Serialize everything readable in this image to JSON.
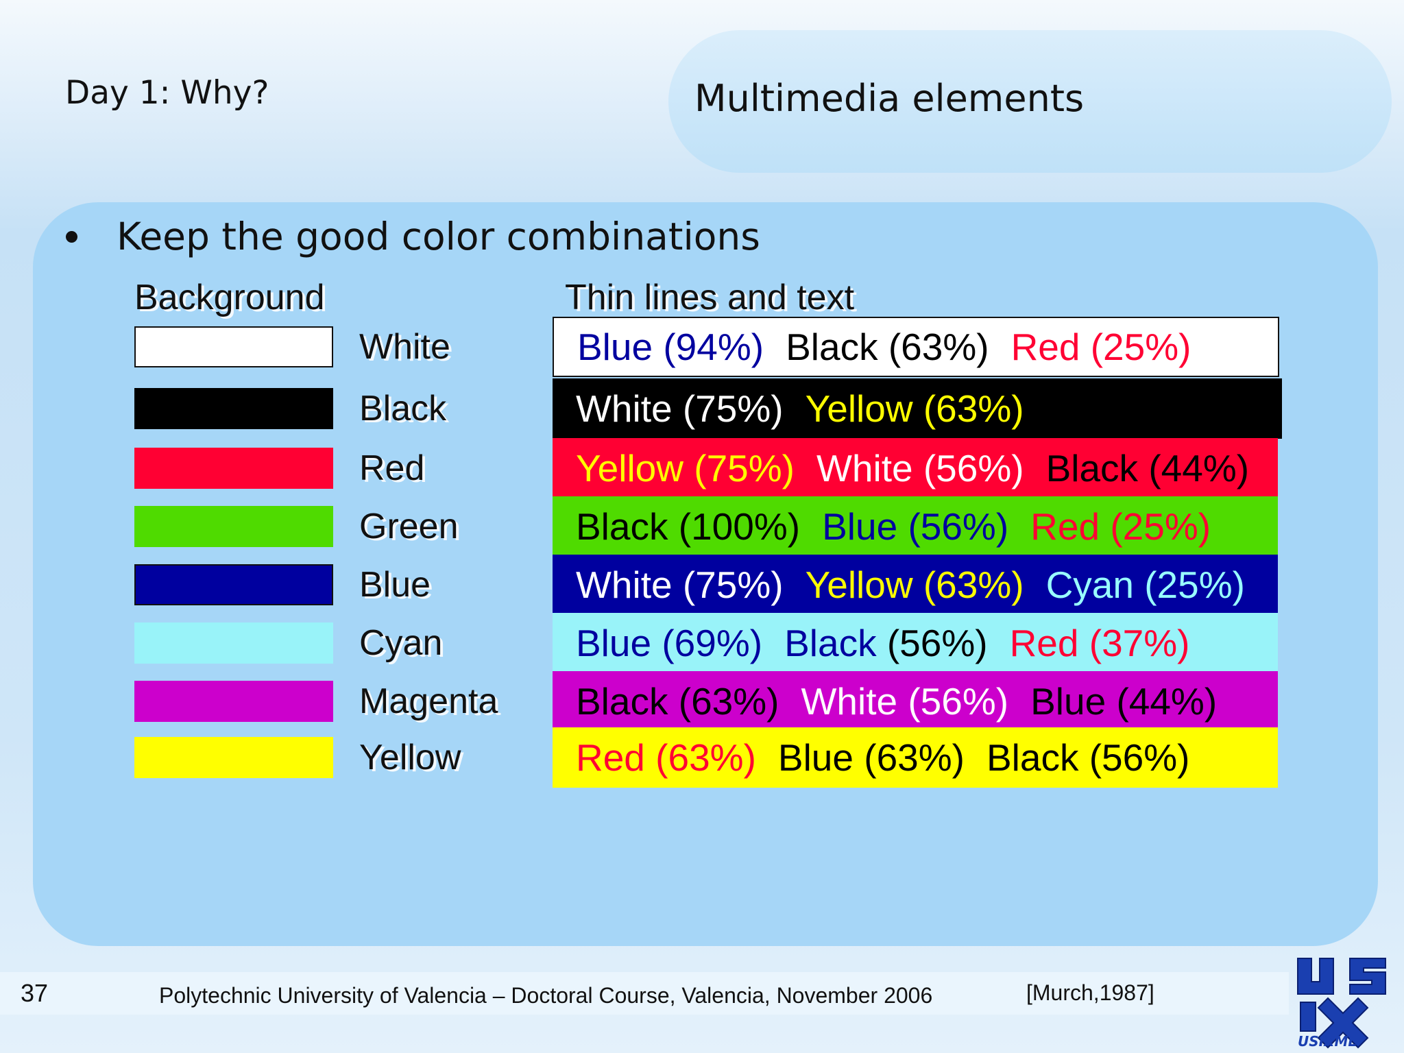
{
  "header": {
    "day_title": "Day 1: Why?",
    "slide_title": "Multimedia elements"
  },
  "bullet": "Keep the good color combinations",
  "columns": {
    "background": "Background",
    "thin_lines": "Thin lines and text"
  },
  "rows": [
    {
      "background": "White",
      "swatch_color": "#ffffff",
      "band_color": "#ffffff",
      "items": [
        {
          "text": "Blue (94%)",
          "color": "#00009f"
        },
        {
          "text": "Black (63%)",
          "color": "#000000"
        },
        {
          "text": "Red (25%)",
          "color": "#ff0033"
        }
      ]
    },
    {
      "background": "Black",
      "swatch_color": "#000000",
      "band_color": "#000000",
      "items": [
        {
          "text": "White (75%)",
          "color": "#ffffff"
        },
        {
          "text": "Yellow (63%)",
          "color": "#ffff00"
        }
      ]
    },
    {
      "background": "Red",
      "swatch_color": "#ff0033",
      "band_color": "#ff0033",
      "items": [
        {
          "text": "Yellow (75%)",
          "color": "#ffff00"
        },
        {
          "text": "White (56%)",
          "color": "#ffffff"
        },
        {
          "text": "Black (44%)",
          "color": "#000000"
        }
      ]
    },
    {
      "background": "Green",
      "swatch_color": "#4fdb00",
      "band_color": "#4fdb00",
      "items": [
        {
          "text": "Black (100%)",
          "color": "#000000"
        },
        {
          "text": "Blue (56%)",
          "color": "#00009f"
        },
        {
          "text": "Red (25%)",
          "color": "#ff0033"
        }
      ]
    },
    {
      "background": "Blue",
      "swatch_color": "#00009f",
      "band_color": "#00009f",
      "items": [
        {
          "text": "White (75%)",
          "color": "#ffffff"
        },
        {
          "text": "Yellow (63%)",
          "color": "#ffff00"
        },
        {
          "text": "Cyan (25%)",
          "color": "#99ffff"
        }
      ]
    },
    {
      "background": "Cyan",
      "swatch_color": "#99f3f9",
      "band_color": "#99f3f9",
      "items": [
        {
          "text": "Blue (69%)",
          "color": "#00009f"
        },
        {
          "text": "Black (56%)",
          "color": "#000000",
          "prefix": "Black",
          "prefix_color": "#00009f",
          "suffix": " (56%)"
        },
        {
          "text": "Red (37%)",
          "color": "#ff0033"
        }
      ]
    },
    {
      "background": "Magenta",
      "swatch_color": "#cc00cc",
      "band_color": "#cc00cc",
      "items": [
        {
          "text": "Black (63%)",
          "color": "#000000"
        },
        {
          "text": "White (56%)",
          "color": "#ffffff"
        },
        {
          "text": "Blue (44%)",
          "color": "#000000"
        }
      ]
    },
    {
      "background": "Yellow",
      "swatch_color": "#ffff00",
      "band_color": "#ffff00",
      "items": [
        {
          "text": "Red (63%)",
          "color": "#ff0033"
        },
        {
          "text": "Blue (63%)",
          "color": "#000000"
        },
        {
          "text": "Black (56%)",
          "color": "#000000"
        }
      ]
    }
  ],
  "footer": {
    "page_number": "37",
    "text": "Polytechnic University of Valencia – Doctoral Course, Valencia, November 2006",
    "citation": "[Murch,1987]",
    "logo_text": "USIXML"
  }
}
